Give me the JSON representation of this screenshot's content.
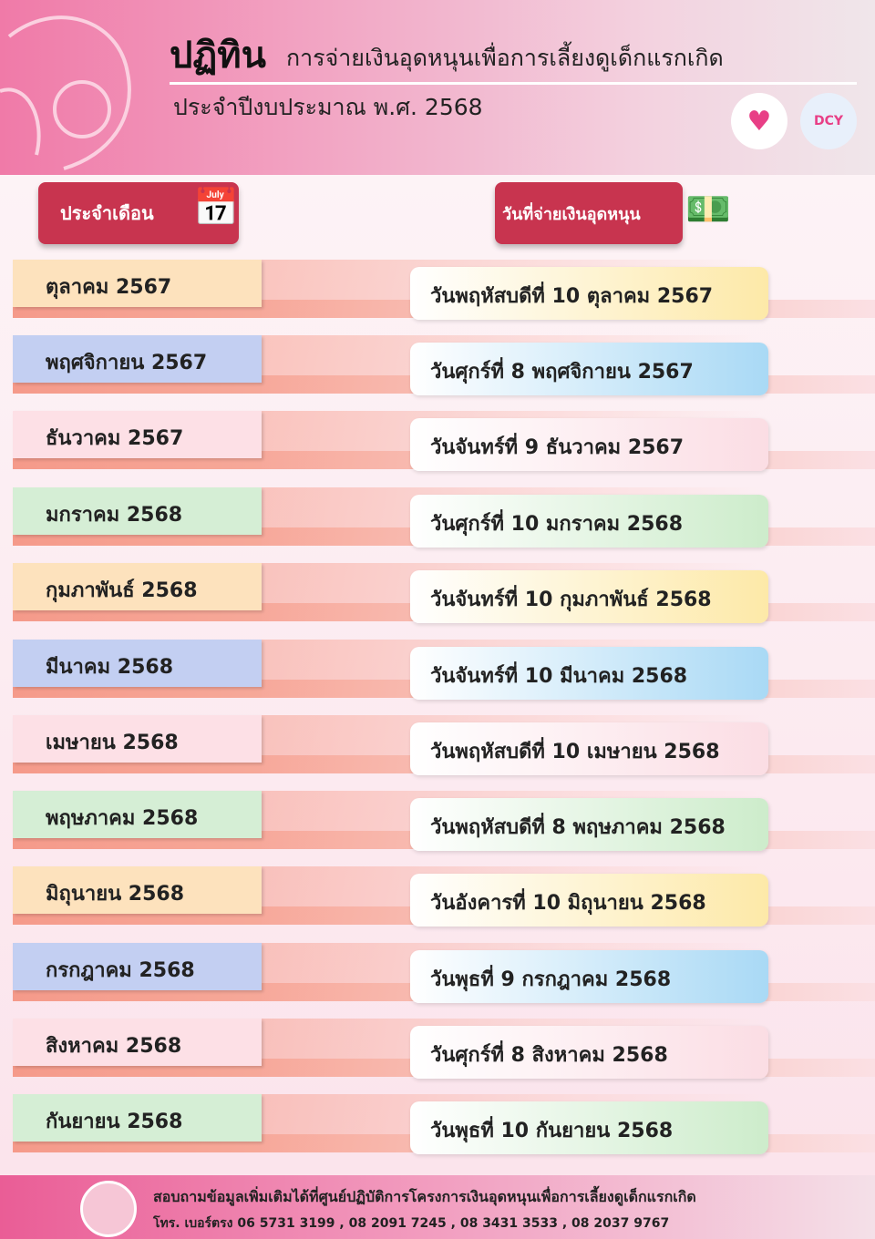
{
  "header": {
    "title_main": "ปฏิทิน",
    "title_sub": "การจ่ายเงินอุดหนุนเพื่อการเลี้ยงดูเด็กแรกเกิด",
    "title_year": "ประจำปีงบประมาณ พ.ศ. 2568",
    "logo_right": "DCY"
  },
  "columns": {
    "month": "ประจำเดือน",
    "pay_date": "วันที่จ่ายเงินอุดหนุน"
  },
  "colors": {
    "accent": "#c8344f",
    "orange": "#fde2bd",
    "blue": "#c3cff2",
    "pink": "#fde0e6",
    "green": "#d5eed5"
  },
  "rows": [
    {
      "month": "ตุลาคม 2567",
      "date": "วันพฤหัสบดีที่ 10 ตุลาคม 2567",
      "color": "orange"
    },
    {
      "month": "พฤศจิกายน 2567",
      "date": "วันศุกร์ที่ 8 พฤศจิกายน 2567",
      "color": "blue"
    },
    {
      "month": "ธันวาคม 2567",
      "date": "วันจันทร์ที่ 9 ธันวาคม 2567",
      "color": "pink"
    },
    {
      "month": "มกราคม 2568",
      "date": "วันศุกร์ที่ 10 มกราคม 2568",
      "color": "green"
    },
    {
      "month": "กุมภาพันธ์ 2568",
      "date": "วันจันทร์ที่ 10 กุมภาพันธ์ 2568",
      "color": "orange"
    },
    {
      "month": "มีนาคม 2568",
      "date": "วันจันทร์ที่ 10 มีนาคม 2568",
      "color": "blue"
    },
    {
      "month": "เมษายน 2568",
      "date": "วันพฤหัสบดีที่ 10 เมษายน 2568",
      "color": "pink"
    },
    {
      "month": "พฤษภาคม 2568",
      "date": "วันพฤหัสบดีที่ 8 พฤษภาคม 2568",
      "color": "green"
    },
    {
      "month": "มิถุนายน 2568",
      "date": "วันอังคารที่ 10 มิถุนายน 2568",
      "color": "orange"
    },
    {
      "month": "กรกฎาคม 2568",
      "date": "วันพุธที่ 9 กรกฎาคม 2568",
      "color": "blue"
    },
    {
      "month": "สิงหาคม 2568",
      "date": "วันศุกร์ที่ 8 สิงหาคม 2568",
      "color": "pink"
    },
    {
      "month": "กันยายน 2568",
      "date": "วันพุธที่ 10 กันยายน 2568",
      "color": "green"
    }
  ],
  "footer": {
    "line1": "สอบถามข้อมูลเพิ่มเติมได้ที่ศูนย์ปฏิบัติการโครงการเงินอุดหนุนเพื่อการเลี้ยงดูเด็กแรกเกิด",
    "line2": "โทร. เบอร์ตรง 06 5731 3199 , 08 2091 7245 , 08 3431 3533 , 08 2037 9767"
  }
}
